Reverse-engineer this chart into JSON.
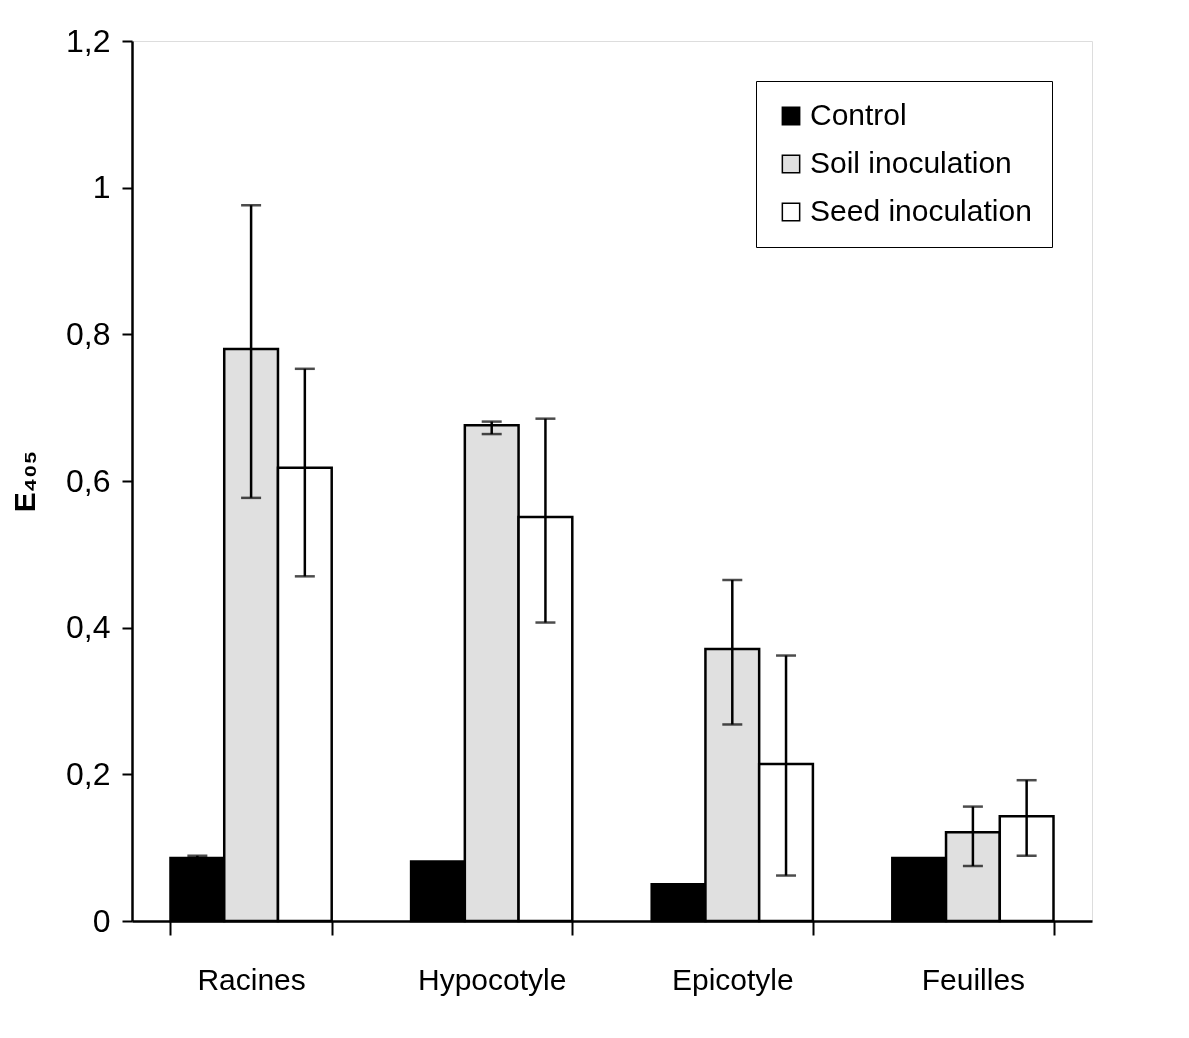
{
  "chart_data": {
    "type": "bar",
    "ylabel": "E₄₀₅",
    "categories": [
      "Racines",
      "Hypocotyle",
      "Epicotyle",
      "Feuilles"
    ],
    "series": [
      {
        "name": "Control",
        "color": "#000000",
        "values": [
          0.086,
          0.081,
          0.05,
          0.086
        ],
        "errors": [
          [
            0.083,
            0.089
          ],
          null,
          null,
          null
        ]
      },
      {
        "name": "Soil inoculation",
        "color": "#e0e0e0",
        "values": [
          0.78,
          0.676,
          0.371,
          0.121
        ],
        "errors": [
          [
            0.577,
            0.976
          ],
          [
            0.664,
            0.681
          ],
          [
            0.268,
            0.465
          ],
          [
            0.075,
            0.156
          ]
        ]
      },
      {
        "name": "Seed inoculation",
        "color": "#ffffff",
        "values": [
          0.618,
          0.551,
          0.214,
          0.143
        ],
        "errors": [
          [
            0.47,
            0.753
          ],
          [
            0.407,
            0.685
          ],
          [
            0.062,
            0.362
          ],
          [
            0.089,
            0.192
          ]
        ]
      }
    ],
    "ylim": [
      0,
      1.2
    ],
    "yticks": [
      0,
      {
        "value": 0.2,
        "label": "0,2"
      },
      {
        "value": 0.4,
        "label": "0,4"
      },
      {
        "value": 0.6,
        "label": "0,6"
      },
      {
        "value": 0.8,
        "label": "0,8"
      },
      1,
      {
        "value": 1.2,
        "label": "1,2"
      }
    ],
    "grid": false,
    "legend": "top right"
  }
}
